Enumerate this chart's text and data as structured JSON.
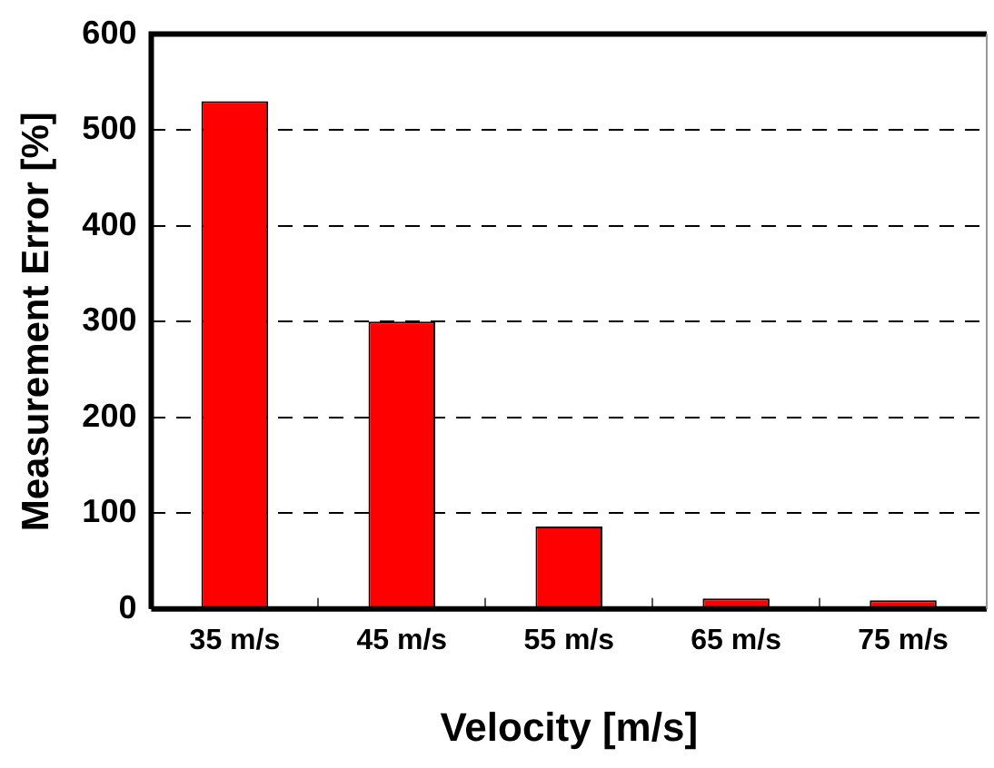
{
  "chart_data": {
    "type": "bar",
    "xlabel": "Velocity [m/s]",
    "ylabel": "Measurement Error [%]",
    "categories": [
      "35 m/s",
      "45 m/s",
      "55 m/s",
      "65 m/s",
      "75 m/s"
    ],
    "values": [
      530,
      300,
      86,
      11,
      9
    ],
    "color": "#ff0000",
    "ylim": [
      0,
      600
    ],
    "yticks": [
      0,
      100,
      200,
      300,
      400,
      500,
      600
    ],
    "grid": "y",
    "legend": false
  }
}
